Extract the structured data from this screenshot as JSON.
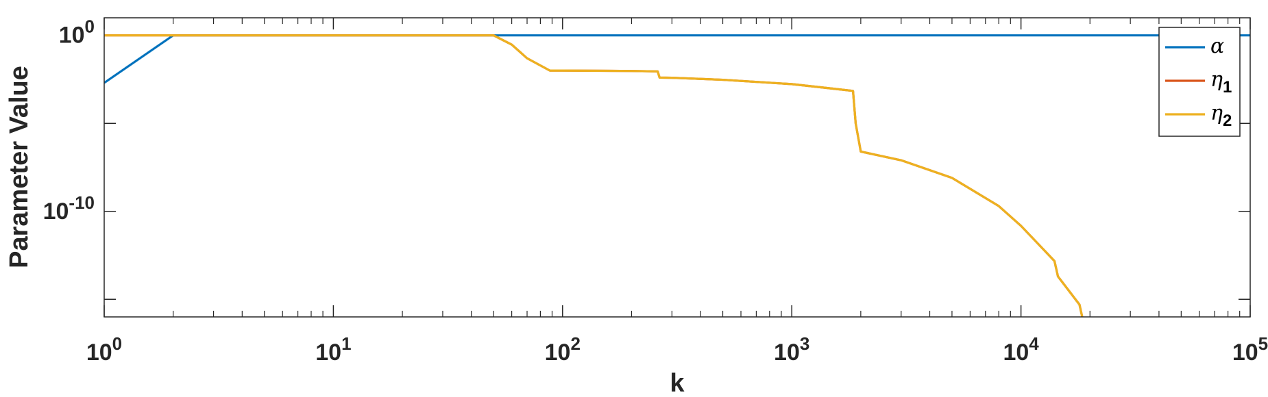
{
  "chart_data": {
    "type": "line",
    "title": "",
    "xlabel": "k",
    "ylabel": "Parameter Value",
    "xscale": "log",
    "yscale": "log",
    "xlim": [
      1,
      100000
    ],
    "ylim": [
      1e-16,
      10
    ],
    "x_ticks": [
      {
        "value": 1,
        "base": "10",
        "exp": "0"
      },
      {
        "value": 10,
        "base": "10",
        "exp": "1"
      },
      {
        "value": 100,
        "base": "10",
        "exp": "2"
      },
      {
        "value": 1000,
        "base": "10",
        "exp": "3"
      },
      {
        "value": 10000,
        "base": "10",
        "exp": "4"
      },
      {
        "value": 100000,
        "base": "10",
        "exp": "5"
      }
    ],
    "y_ticks": [
      {
        "value": 1e-15,
        "base": "",
        "exp": ""
      },
      {
        "value": 1e-10,
        "base": "10",
        "exp": "-10"
      },
      {
        "value": 1e-05,
        "base": "",
        "exp": ""
      },
      {
        "value": 1,
        "base": "10",
        "exp": "0"
      }
    ],
    "grid": false,
    "legend_position": "top-right",
    "colors": {
      "alpha": "#0072BD",
      "eta1": "#D95319",
      "eta2": "#EDB120"
    },
    "series": [
      {
        "name": "α",
        "sub": "",
        "color": "#0072BD",
        "x": [
          1,
          2,
          100000
        ],
        "y": [
          0.002,
          1,
          1
        ]
      },
      {
        "name": "η",
        "sub": "1",
        "color": "#D95319",
        "x": [
          1,
          50,
          60,
          70,
          88,
          100,
          200,
          260,
          265,
          300,
          500,
          1000,
          1500,
          1850,
          1900,
          2000,
          3000,
          5000,
          8000,
          10000,
          14000,
          14500,
          18000,
          18500,
          19000
        ],
        "y": [
          1,
          1,
          0.3,
          0.05,
          0.01,
          0.01,
          0.0095,
          0.009,
          0.004,
          0.0039,
          0.003,
          0.0017,
          0.00095,
          0.0007,
          1e-05,
          2.5e-07,
          8e-08,
          8e-09,
          2e-10,
          1.5e-11,
          1.5e-13,
          2e-14,
          5e-16,
          1e-16,
          1e-18
        ]
      },
      {
        "name": "η",
        "sub": "2",
        "color": "#EDB120",
        "x": [
          1,
          50,
          60,
          70,
          88,
          100,
          200,
          260,
          265,
          300,
          500,
          1000,
          1500,
          1850,
          1900,
          2000,
          3000,
          5000,
          8000,
          10000,
          14000,
          14500,
          18000,
          18500,
          19000
        ],
        "y": [
          1,
          1,
          0.3,
          0.05,
          0.01,
          0.01,
          0.0095,
          0.009,
          0.004,
          0.0039,
          0.003,
          0.0017,
          0.00095,
          0.0007,
          1e-05,
          2.5e-07,
          8e-08,
          8e-09,
          2e-10,
          1.5e-11,
          1.5e-13,
          2e-14,
          5e-16,
          1e-16,
          1e-18
        ]
      }
    ]
  }
}
